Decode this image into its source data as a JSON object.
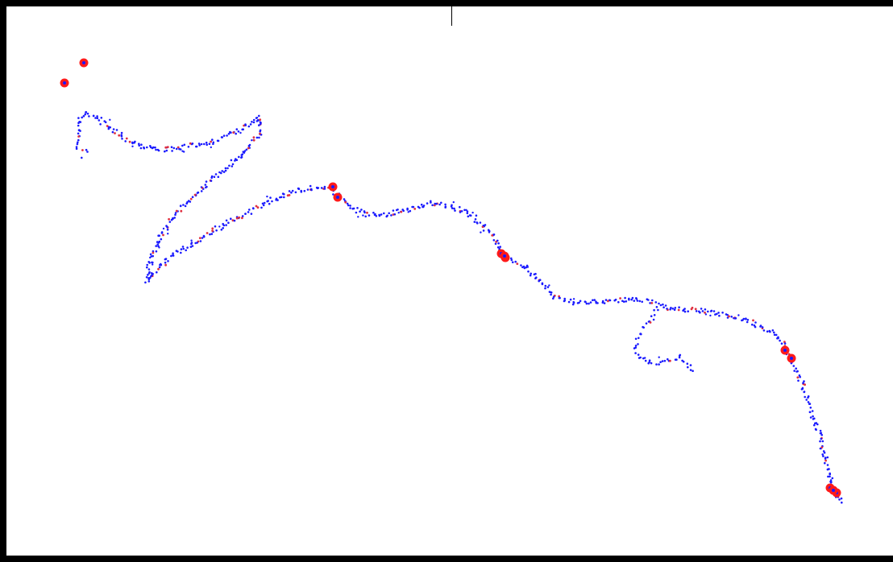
{
  "map": {
    "style": "gps-track-point-cloud",
    "background_color": "#ffffff",
    "frame_color": "#000000",
    "track_point_color": "#1a1aff",
    "track_point_alt_color": "#e03040",
    "marker_color": "#ff1a1a",
    "marker_count": 12
  }
}
